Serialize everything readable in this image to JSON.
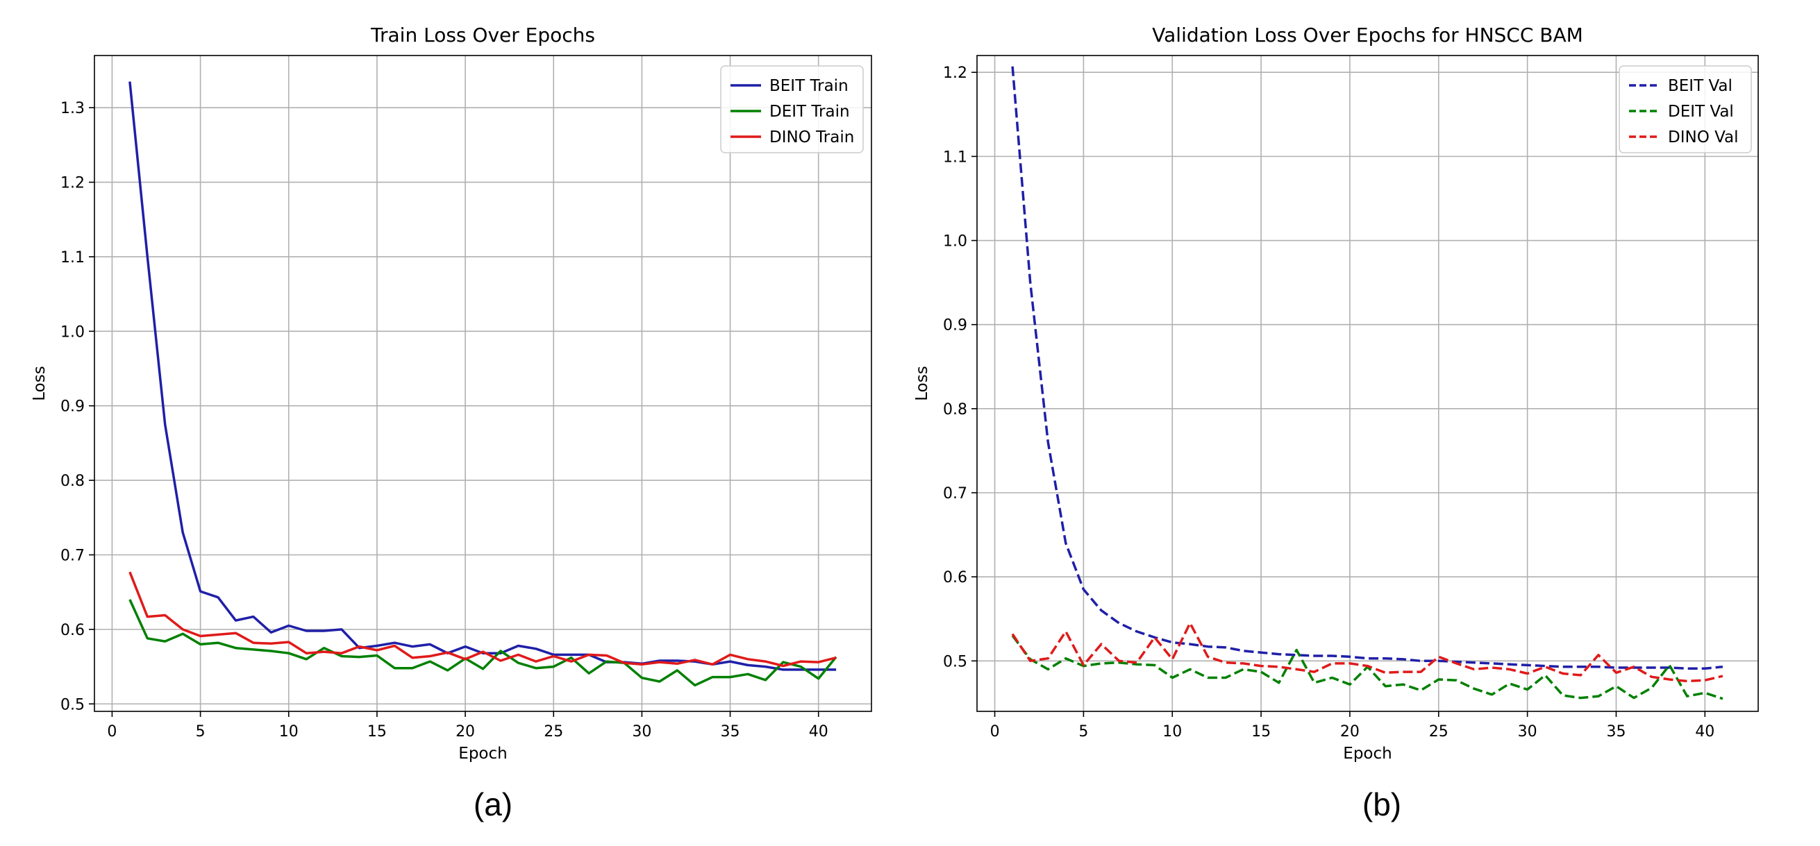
{
  "chart_data": [
    {
      "type": "line",
      "panel_label": "(a)",
      "title": "Train Loss Over Epochs",
      "xlabel": "Epoch",
      "ylabel": "Loss",
      "xlim": [
        -1,
        43
      ],
      "ylim": [
        0.49,
        1.37
      ],
      "xticks": [
        0,
        5,
        10,
        15,
        20,
        25,
        30,
        35,
        40
      ],
      "yticks": [
        0.5,
        0.6,
        0.7,
        0.8,
        0.9,
        1.0,
        1.1,
        1.2,
        1.3
      ],
      "ytick_labels": [
        "0.5",
        "0.6",
        "0.7",
        "0.8",
        "0.9",
        "1.0",
        "1.1",
        "1.2",
        "1.3"
      ],
      "grid": true,
      "legend_position": "top-right",
      "x": [
        1,
        2,
        3,
        4,
        5,
        6,
        7,
        8,
        9,
        10,
        11,
        12,
        13,
        14,
        15,
        16,
        17,
        18,
        19,
        20,
        21,
        22,
        23,
        24,
        25,
        26,
        27,
        28,
        29,
        30,
        31,
        32,
        33,
        34,
        35,
        36,
        37,
        38,
        39,
        40,
        41
      ],
      "series": [
        {
          "name": "BEIT Train",
          "color": "#1f1fa8",
          "dash": "solid",
          "values": [
            1.335,
            1.1,
            0.875,
            0.73,
            0.651,
            0.643,
            0.612,
            0.617,
            0.596,
            0.605,
            0.598,
            0.598,
            0.6,
            0.575,
            0.578,
            0.582,
            0.577,
            0.58,
            0.568,
            0.577,
            0.568,
            0.568,
            0.578,
            0.574,
            0.566,
            0.566,
            0.566,
            0.556,
            0.556,
            0.554,
            0.558,
            0.558,
            0.557,
            0.553,
            0.557,
            0.552,
            0.55,
            0.546,
            0.546,
            0.546,
            0.546
          ]
        },
        {
          "name": "DEIT Train",
          "color": "#008000",
          "dash": "solid",
          "values": [
            0.64,
            0.588,
            0.584,
            0.594,
            0.58,
            0.582,
            0.575,
            0.573,
            0.571,
            0.568,
            0.56,
            0.575,
            0.564,
            0.563,
            0.565,
            0.548,
            0.548,
            0.557,
            0.545,
            0.561,
            0.547,
            0.571,
            0.555,
            0.548,
            0.55,
            0.562,
            0.541,
            0.557,
            0.555,
            0.535,
            0.53,
            0.545,
            0.525,
            0.536,
            0.536,
            0.54,
            0.532,
            0.556,
            0.55,
            0.534,
            0.563
          ]
        },
        {
          "name": "DINO Train",
          "color": "#e01a1a",
          "dash": "solid",
          "values": [
            0.677,
            0.617,
            0.619,
            0.6,
            0.591,
            0.593,
            0.595,
            0.582,
            0.581,
            0.583,
            0.568,
            0.57,
            0.568,
            0.577,
            0.572,
            0.578,
            0.562,
            0.564,
            0.569,
            0.56,
            0.57,
            0.558,
            0.566,
            0.557,
            0.564,
            0.557,
            0.566,
            0.565,
            0.555,
            0.553,
            0.556,
            0.554,
            0.559,
            0.553,
            0.566,
            0.56,
            0.557,
            0.551,
            0.557,
            0.556,
            0.562
          ]
        }
      ]
    },
    {
      "type": "line",
      "panel_label": "(b)",
      "title": "Validation Loss Over Epochs for HNSCC BAM",
      "xlabel": "Epoch",
      "ylabel": "Loss",
      "xlim": [
        -1,
        43
      ],
      "ylim": [
        0.44,
        1.22
      ],
      "xticks": [
        0,
        5,
        10,
        15,
        20,
        25,
        30,
        35,
        40
      ],
      "yticks": [
        0.5,
        0.6,
        0.7,
        0.8,
        0.9,
        1.0,
        1.1,
        1.2
      ],
      "ytick_labels": [
        "0.5",
        "0.6",
        "0.7",
        "0.8",
        "0.9",
        "1.0",
        "1.1",
        "1.2"
      ],
      "grid": true,
      "legend_position": "top-right",
      "x": [
        1,
        2,
        3,
        4,
        5,
        6,
        7,
        8,
        9,
        10,
        11,
        12,
        13,
        14,
        15,
        16,
        17,
        18,
        19,
        20,
        21,
        22,
        23,
        24,
        25,
        26,
        27,
        28,
        29,
        30,
        31,
        32,
        33,
        34,
        35,
        36,
        37,
        38,
        39,
        40,
        41
      ],
      "series": [
        {
          "name": "BEIT Val",
          "color": "#1f1fa8",
          "dash": "dashed",
          "values": [
            1.207,
            0.95,
            0.76,
            0.64,
            0.585,
            0.56,
            0.545,
            0.535,
            0.528,
            0.522,
            0.52,
            0.517,
            0.516,
            0.512,
            0.51,
            0.508,
            0.507,
            0.506,
            0.506,
            0.505,
            0.503,
            0.503,
            0.502,
            0.5,
            0.5,
            0.499,
            0.498,
            0.497,
            0.496,
            0.495,
            0.494,
            0.493,
            0.493,
            0.493,
            0.492,
            0.492,
            0.492,
            0.492,
            0.491,
            0.491,
            0.493
          ]
        },
        {
          "name": "DEIT Val",
          "color": "#008000",
          "dash": "dashed",
          "values": [
            0.53,
            0.502,
            0.49,
            0.503,
            0.494,
            0.497,
            0.498,
            0.496,
            0.495,
            0.48,
            0.49,
            0.48,
            0.48,
            0.49,
            0.487,
            0.474,
            0.513,
            0.474,
            0.48,
            0.472,
            0.493,
            0.47,
            0.472,
            0.465,
            0.478,
            0.477,
            0.467,
            0.46,
            0.473,
            0.466,
            0.483,
            0.459,
            0.456,
            0.458,
            0.47,
            0.456,
            0.468,
            0.495,
            0.458,
            0.462,
            0.455
          ]
        },
        {
          "name": "DINO Val",
          "color": "#e01a1a",
          "dash": "dashed",
          "values": [
            0.532,
            0.5,
            0.503,
            0.535,
            0.495,
            0.52,
            0.5,
            0.498,
            0.528,
            0.502,
            0.545,
            0.505,
            0.498,
            0.497,
            0.494,
            0.493,
            0.49,
            0.487,
            0.497,
            0.497,
            0.494,
            0.486,
            0.487,
            0.487,
            0.505,
            0.497,
            0.49,
            0.492,
            0.49,
            0.485,
            0.493,
            0.485,
            0.483,
            0.507,
            0.486,
            0.493,
            0.481,
            0.478,
            0.476,
            0.477,
            0.482
          ]
        }
      ]
    }
  ]
}
